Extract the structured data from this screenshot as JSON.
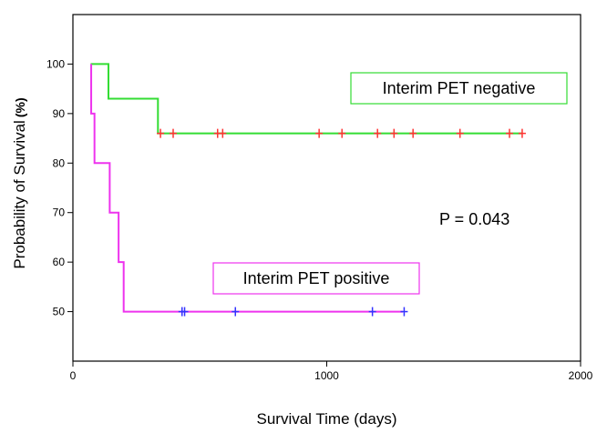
{
  "chart_data": {
    "type": "line",
    "title": "",
    "xlabel": "Survival Time (days)",
    "ylabel_main": "Probability of Survival",
    "ylabel_unit": "(%)",
    "xlim": [
      0,
      2000
    ],
    "ylim": [
      40,
      110
    ],
    "xticks": [
      0,
      1000,
      2000
    ],
    "xtick_labels": [
      "0",
      "1000",
      "2000"
    ],
    "yticks": [
      50,
      60,
      70,
      80,
      90,
      100
    ],
    "ytick_labels": [
      "50",
      "60",
      "70",
      "80",
      "90",
      "100"
    ],
    "grid": false,
    "legend": "none",
    "annotation": "P = 0.043",
    "series": [
      {
        "name": "Interim PET negative",
        "color": "#33dd33",
        "censor_color": "#ff3333",
        "step_points": [
          [
            70,
            100
          ],
          [
            140,
            100
          ],
          [
            140,
            93
          ],
          [
            335,
            93
          ],
          [
            335,
            86
          ],
          [
            1770,
            86
          ]
        ],
        "censored_x": [
          345,
          395,
          570,
          590,
          970,
          1060,
          1200,
          1265,
          1340,
          1525,
          1720,
          1770
        ]
      },
      {
        "name": "Interim PET positive",
        "color": "#ee33ee",
        "censor_color": "#3333ff",
        "step_points": [
          [
            72,
            100
          ],
          [
            72,
            90
          ],
          [
            85,
            90
          ],
          [
            85,
            80
          ],
          [
            145,
            80
          ],
          [
            145,
            70
          ],
          [
            180,
            70
          ],
          [
            180,
            60
          ],
          [
            200,
            60
          ],
          [
            200,
            50
          ],
          [
            1300,
            50
          ]
        ],
        "censored_x": [
          430,
          440,
          640,
          1180,
          1305
        ]
      }
    ]
  }
}
